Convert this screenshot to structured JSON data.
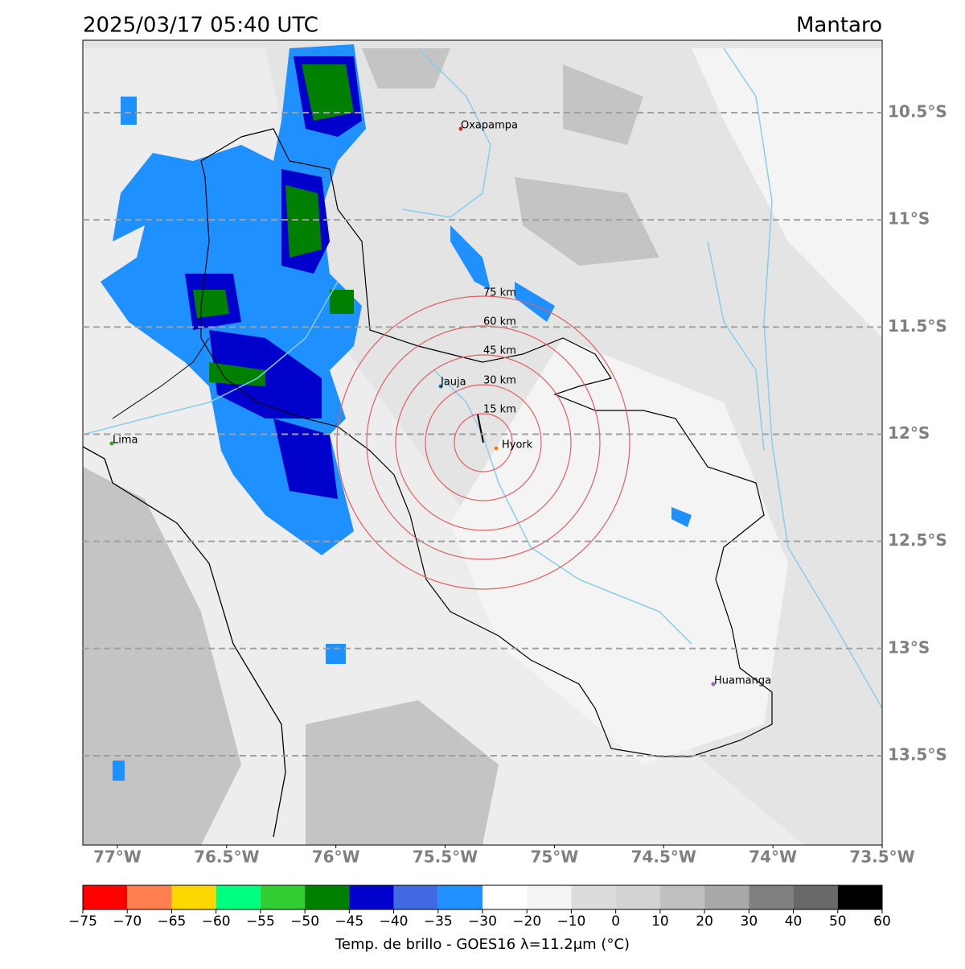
{
  "header": {
    "title": "2025/03/17 05:40 UTC",
    "region": "Mantaro"
  },
  "map": {
    "xlim": [
      -77.158,
      -73.5
    ],
    "ylim": [
      -13.917,
      -10.162
    ],
    "xticks": [
      {
        "value": -77,
        "label": "77°W"
      },
      {
        "value": -76.5,
        "label": "76.5°W"
      },
      {
        "value": -76,
        "label": "76°W"
      },
      {
        "value": -75.5,
        "label": "75.5°W"
      },
      {
        "value": -75,
        "label": "75°W"
      },
      {
        "value": -74.5,
        "label": "74.5°W"
      },
      {
        "value": -74,
        "label": "74°W"
      },
      {
        "value": -73.5,
        "label": "73.5°W"
      }
    ],
    "yticks": [
      {
        "value": -10.5,
        "label": "10.5°S"
      },
      {
        "value": -11,
        "label": "11°S"
      },
      {
        "value": -11.5,
        "label": "11.5°S"
      },
      {
        "value": -12,
        "label": "12°S"
      },
      {
        "value": -12.5,
        "label": "12.5°S"
      },
      {
        "value": -13,
        "label": "13°S"
      },
      {
        "value": -13.5,
        "label": "13.5°S"
      }
    ],
    "cities": [
      "Oxapampa",
      "Jauja",
      "Hyork",
      "Lima",
      "Huamanga"
    ],
    "rings": [
      "15 km",
      "30 km",
      "45 km",
      "60 km",
      "75 km"
    ]
  },
  "colorbar": {
    "label": "Temp. de brillo - GOES16 λ=11.2μm (°C)",
    "ticks": [
      {
        "value": -75,
        "label": "−75"
      },
      {
        "value": -70,
        "label": "−70"
      },
      {
        "value": -65,
        "label": "−65"
      },
      {
        "value": -60,
        "label": "−60"
      },
      {
        "value": -55,
        "label": "−55"
      },
      {
        "value": -50,
        "label": "−50"
      },
      {
        "value": -45,
        "label": "−45"
      },
      {
        "value": -40,
        "label": "−40"
      },
      {
        "value": -35,
        "label": "−35"
      },
      {
        "value": -30,
        "label": "−30"
      },
      {
        "value": -20,
        "label": "−20"
      },
      {
        "value": -10,
        "label": "−10"
      },
      0,
      10,
      20,
      30,
      40,
      50,
      60
    ],
    "colors": [
      "#ff0000",
      "#ff7f50",
      "#ffd700",
      "#00ff7f",
      "#32cd32",
      "#008000",
      "#0000cd",
      "#4169e1",
      "#1e90ff",
      "#ffffff",
      "#f5f5f5",
      "#dcdcdc",
      "#d3d3d3",
      "#c0c0c0",
      "#a9a9a9",
      "#808080",
      "#696969",
      "#000000"
    ]
  }
}
